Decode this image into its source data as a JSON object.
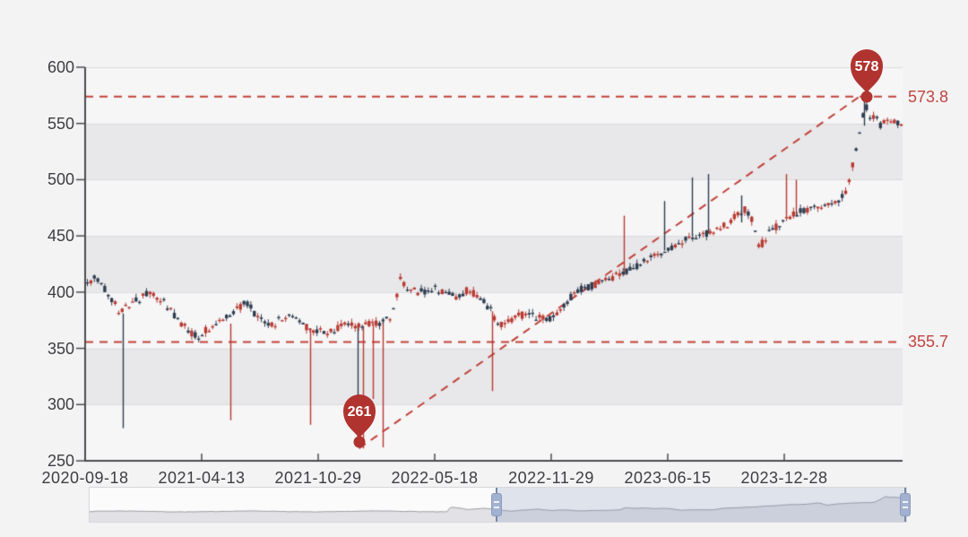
{
  "chart_data": {
    "type": "candlestick",
    "title": "",
    "xlabel": "",
    "ylabel": "",
    "ylim": [
      250,
      600
    ],
    "y_ticks": [
      "600",
      "550",
      "500",
      "450",
      "400",
      "350",
      "300",
      "250"
    ],
    "y_tick_values": [
      600,
      550,
      500,
      450,
      400,
      350,
      300,
      250
    ],
    "x_tick_labels": [
      "2020-09-18",
      "2021-04-13",
      "2021-10-29",
      "2022-05-18",
      "2022-11-29",
      "2023-06-15",
      "2023-12-28"
    ],
    "grid": "horizontal-bands",
    "legend": "none",
    "colors": {
      "up_candle": "#b93a32",
      "down_candle": "#2e3d4f",
      "dashed_line": "#c2423b",
      "annotation_text": "#c0453f",
      "pin_fill": "#b0332f",
      "pin_text": "#ffffff",
      "axis": "#4b4c50",
      "tick_text": "#3d3e42",
      "band_gray": "#e8e8ea",
      "band_light": "#f6f6f7",
      "background": "#f3f3f4",
      "nav_line": "#9a9aa0",
      "nav_fill": "#e2e2e6",
      "nav_window": "#8096be"
    },
    "annotations": {
      "max_marker": {
        "label": "578",
        "value": 578,
        "x_frac": 0.956
      },
      "min_marker": {
        "label": "261",
        "value": 261,
        "x_frac": 0.335
      },
      "upper_line": {
        "label": "573.8",
        "value": 573.8
      },
      "lower_line": {
        "label": "355.7",
        "value": 355.7
      },
      "trendline": {
        "from_x_frac": 0.335,
        "from_value": 261,
        "to_x_frac": 0.947,
        "to_value": 573.8
      }
    },
    "close_path": [
      [
        0.0,
        408
      ],
      [
        0.01,
        413
      ],
      [
        0.025,
        400
      ],
      [
        0.04,
        383
      ],
      [
        0.055,
        390
      ],
      [
        0.075,
        399
      ],
      [
        0.095,
        390
      ],
      [
        0.115,
        372
      ],
      [
        0.135,
        360
      ],
      [
        0.15,
        368
      ],
      [
        0.165,
        376
      ],
      [
        0.185,
        385
      ],
      [
        0.195,
        391
      ],
      [
        0.21,
        377
      ],
      [
        0.225,
        370
      ],
      [
        0.24,
        377
      ],
      [
        0.255,
        379
      ],
      [
        0.27,
        368
      ],
      [
        0.285,
        366
      ],
      [
        0.3,
        364
      ],
      [
        0.315,
        371
      ],
      [
        0.33,
        369
      ],
      [
        0.345,
        371
      ],
      [
        0.36,
        373
      ],
      [
        0.375,
        380
      ],
      [
        0.385,
        412
      ],
      [
        0.395,
        402
      ],
      [
        0.41,
        400
      ],
      [
        0.425,
        404
      ],
      [
        0.44,
        399
      ],
      [
        0.455,
        394
      ],
      [
        0.465,
        401
      ],
      [
        0.48,
        397
      ],
      [
        0.495,
        385
      ],
      [
        0.505,
        371
      ],
      [
        0.52,
        376
      ],
      [
        0.535,
        380
      ],
      [
        0.55,
        378
      ],
      [
        0.565,
        376
      ],
      [
        0.58,
        381
      ],
      [
        0.595,
        396
      ],
      [
        0.61,
        404
      ],
      [
        0.625,
        407
      ],
      [
        0.64,
        411
      ],
      [
        0.655,
        416
      ],
      [
        0.67,
        420
      ],
      [
        0.685,
        427
      ],
      [
        0.7,
        433
      ],
      [
        0.715,
        439
      ],
      [
        0.73,
        444
      ],
      [
        0.745,
        450
      ],
      [
        0.76,
        452
      ],
      [
        0.775,
        455
      ],
      [
        0.79,
        462
      ],
      [
        0.8,
        470
      ],
      [
        0.81,
        474
      ],
      [
        0.818,
        462
      ],
      [
        0.826,
        440
      ],
      [
        0.835,
        450
      ],
      [
        0.845,
        458
      ],
      [
        0.855,
        463
      ],
      [
        0.87,
        470
      ],
      [
        0.885,
        474
      ],
      [
        0.9,
        477
      ],
      [
        0.915,
        478
      ],
      [
        0.925,
        481
      ],
      [
        0.935,
        495
      ],
      [
        0.945,
        528
      ],
      [
        0.952,
        556
      ],
      [
        0.958,
        566
      ],
      [
        0.963,
        551
      ],
      [
        0.968,
        559
      ],
      [
        0.974,
        547
      ],
      [
        0.98,
        553
      ],
      [
        0.987,
        549
      ],
      [
        0.994,
        552
      ],
      [
        1.0,
        551
      ]
    ],
    "wick_spikes": [
      {
        "f": 0.046,
        "v1": 381,
        "v2": 279,
        "c": "down"
      },
      {
        "f": 0.178,
        "v1": 372,
        "v2": 286,
        "c": "up"
      },
      {
        "f": 0.275,
        "v1": 368,
        "v2": 282,
        "c": "up"
      },
      {
        "f": 0.333,
        "v1": 370,
        "v2": 262,
        "c": "down"
      },
      {
        "f": 0.34,
        "v1": 370,
        "v2": 261,
        "c": "up"
      },
      {
        "f": 0.352,
        "v1": 372,
        "v2": 305,
        "c": "up"
      },
      {
        "f": 0.364,
        "v1": 374,
        "v2": 262,
        "c": "up"
      },
      {
        "f": 0.498,
        "v1": 383,
        "v2": 312,
        "c": "up"
      },
      {
        "f": 0.659,
        "v1": 468,
        "v2": 415,
        "c": "up"
      },
      {
        "f": 0.708,
        "v1": 481,
        "v2": 437,
        "c": "down"
      },
      {
        "f": 0.742,
        "v1": 502,
        "v2": 450,
        "c": "down"
      },
      {
        "f": 0.762,
        "v1": 505,
        "v2": 452,
        "c": "down"
      },
      {
        "f": 0.803,
        "v1": 486,
        "v2": 462,
        "c": "down"
      },
      {
        "f": 0.857,
        "v1": 505,
        "v2": 465,
        "c": "up"
      },
      {
        "f": 0.869,
        "v1": 500,
        "v2": 468,
        "c": "up"
      },
      {
        "f": 0.953,
        "v1": 578,
        "v2": 548,
        "c": "down"
      }
    ],
    "navigator": {
      "window_start_frac": 0.497,
      "window_end_frac": 1.0
    }
  }
}
